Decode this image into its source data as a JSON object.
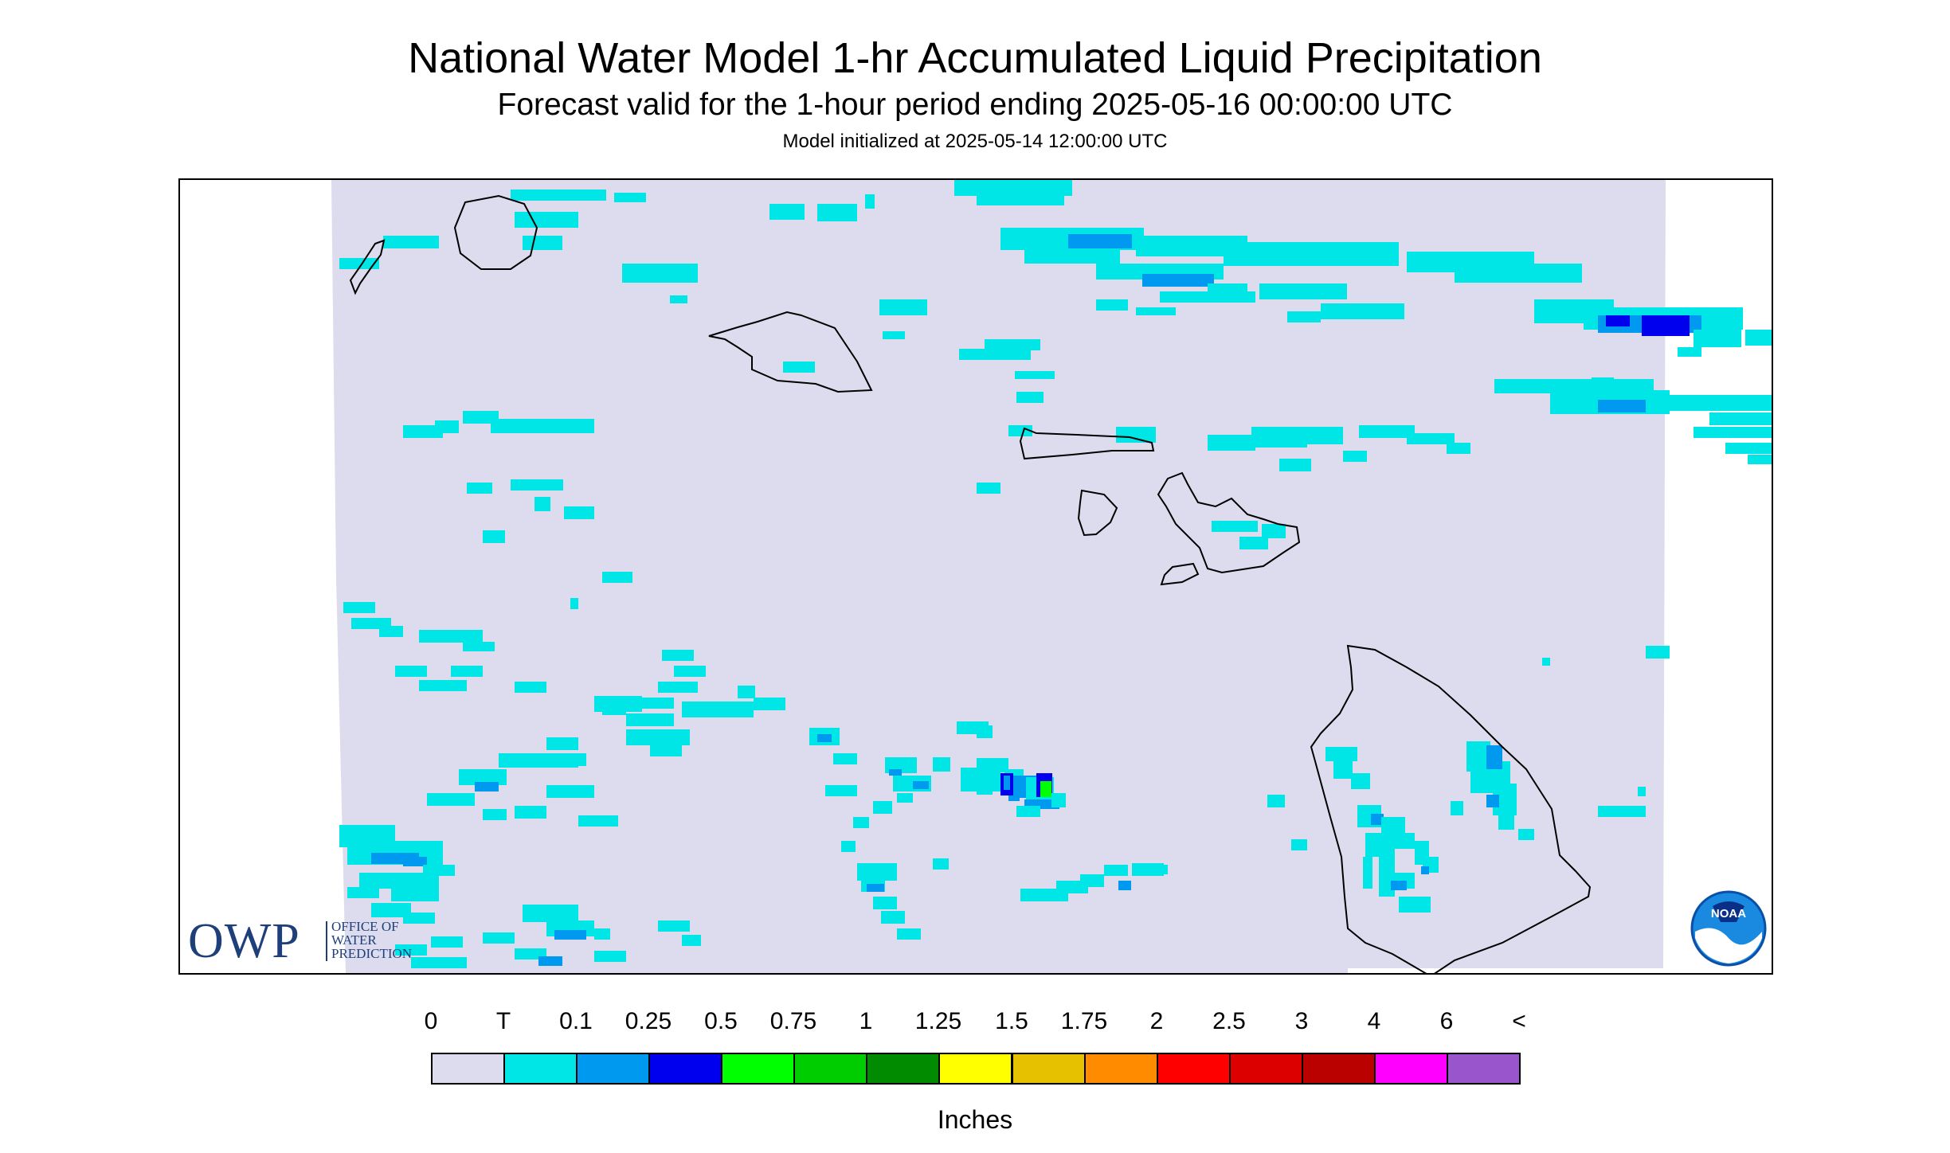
{
  "title": "National Water Model 1-hr Accumulated Liquid Precipitation",
  "subtitle": "Forecast valid for the 1-hour period ending 2025-05-16 00:00:00 UTC",
  "init_line": "Model initialized at 2025-05-14 12:00:00 UTC",
  "owp_logo": {
    "big": "OWP",
    "lines": [
      "OFFICE OF",
      "WATER",
      "PREDICTION"
    ]
  },
  "noaa_logo": {
    "text": "NOAA"
  },
  "legend": {
    "units": "Inches",
    "labels": [
      "0",
      "T",
      "0.1",
      "0.25",
      "0.5",
      "0.75",
      "1",
      "1.25",
      "1.5",
      "1.75",
      "2",
      "2.5",
      "3",
      "4",
      "6",
      "<"
    ],
    "colors": [
      "#dcdcee",
      "#00e5e5",
      "#0099f0",
      "#0000ee",
      "#00ff00",
      "#00cd00",
      "#008b00",
      "#ffff00",
      "#e5c100",
      "#ff8c00",
      "#ff0000",
      "#dd0000",
      "#bb0000",
      "#ff00ff",
      "#9955cc"
    ]
  }
}
